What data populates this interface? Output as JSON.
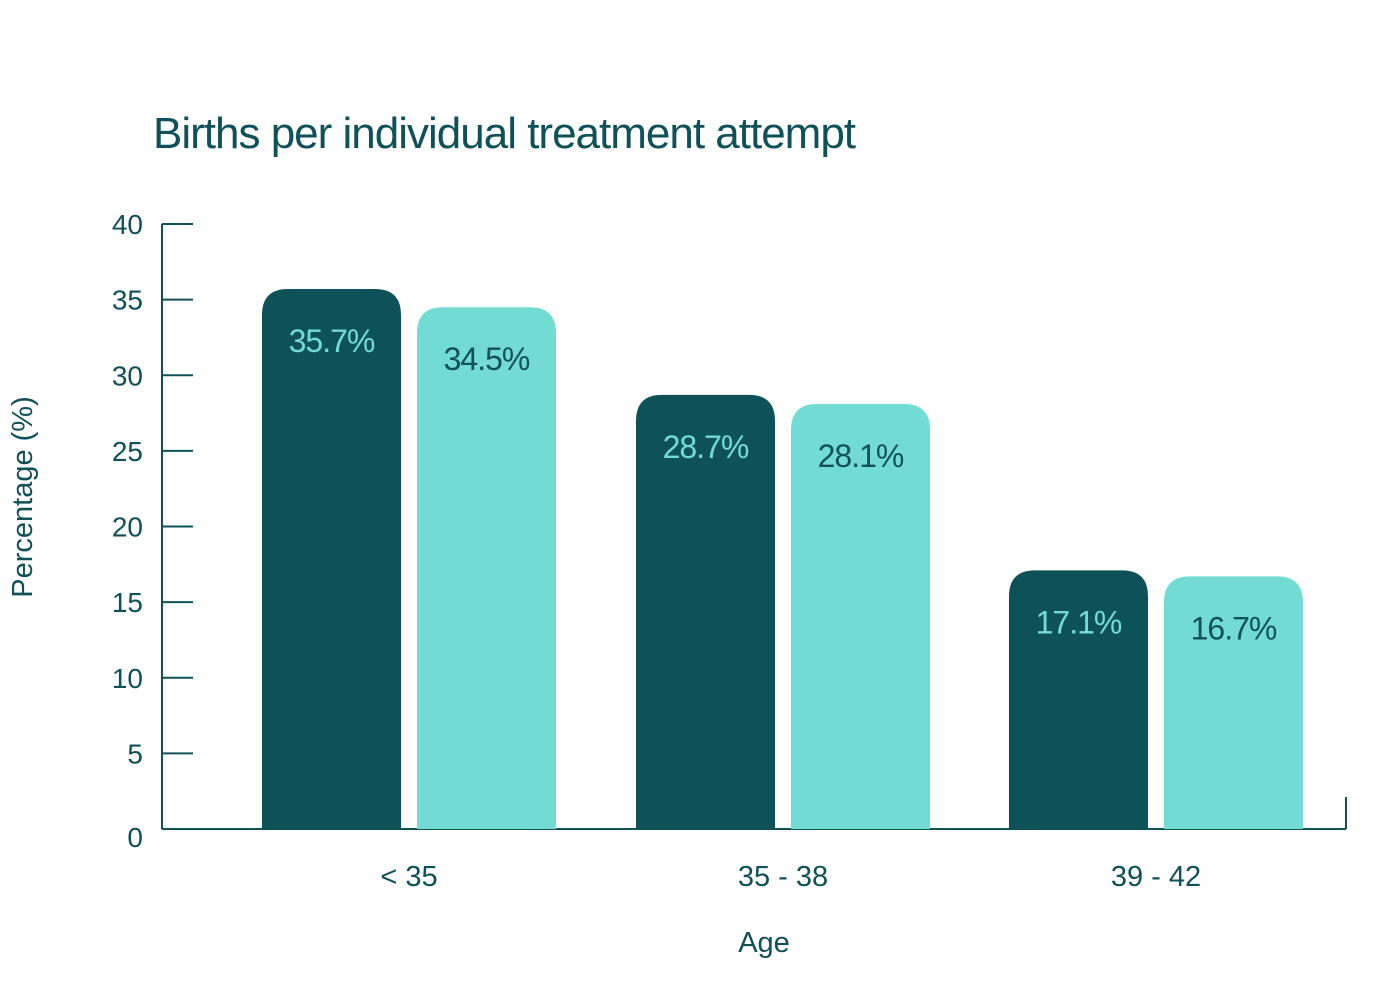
{
  "chart_data": {
    "type": "bar",
    "title": "Births per individual treatment attempt",
    "xlabel": "Age",
    "ylabel": "Percentage (%)",
    "ylim": [
      0,
      40
    ],
    "yticks": [
      0,
      5,
      10,
      15,
      20,
      25,
      30,
      35,
      40
    ],
    "categories": [
      "< 35",
      "35 - 38",
      "39 - 42"
    ],
    "series": [
      {
        "values": [
          35.7,
          28.7,
          17.1
        ],
        "data_labels": [
          "35.7%",
          "28.7%",
          "17.1%"
        ],
        "color": "#0e5158",
        "label_color": "#72dcd4"
      },
      {
        "values": [
          34.5,
          28.1,
          16.7
        ],
        "data_labels": [
          "34.5%",
          "28.1%",
          "16.7%"
        ],
        "color": "#72dcd4",
        "label_color": "#0e5158"
      }
    ],
    "grid": false,
    "legend": false
  },
  "colors": {
    "text": "#0e5158",
    "axis": "#0e5158"
  }
}
